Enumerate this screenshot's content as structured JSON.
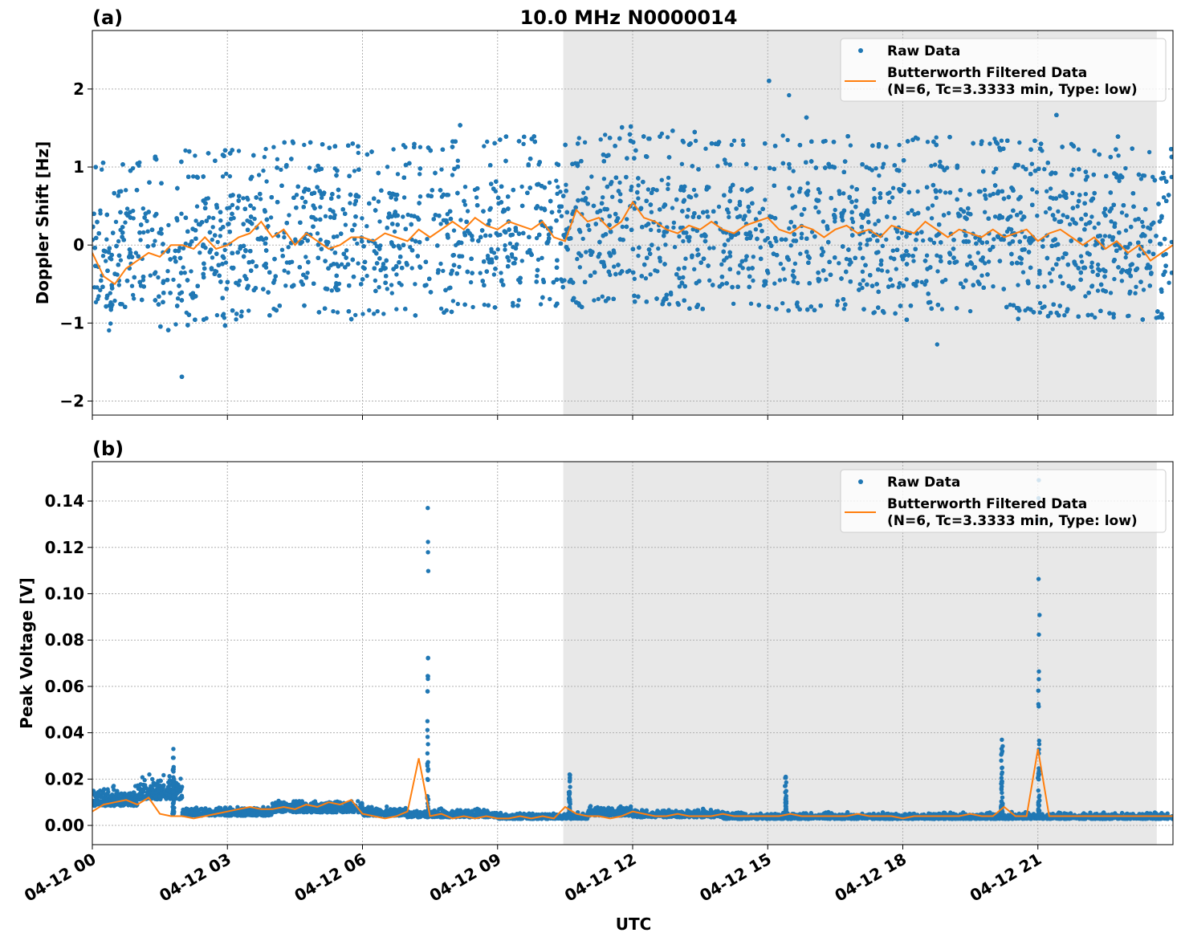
{
  "title": "10.0 MHz N0000014",
  "colors": {
    "raw": "#1f77b4",
    "filtered": "#ff7f0e",
    "shade": "#e8e8e8"
  },
  "chart_data": [
    {
      "type": "scatter+line",
      "panel_label": "(a)",
      "ylabel": "Doppler Shift [Hz]",
      "xlabel": "",
      "xlim_hours": [
        0,
        24
      ],
      "ylim": [
        -2.18,
        2.75
      ],
      "yticks": [
        -2,
        -1,
        0,
        1,
        2
      ],
      "ytick_labels": [
        "−2",
        "−1",
        "0",
        "1",
        "2"
      ],
      "grid": true,
      "shaded_region_hours": [
        10.46,
        23.64
      ],
      "legend": {
        "placement": "upper-right",
        "entries": [
          "Raw Data",
          "Butterworth Filtered Data",
          "(N=6, Tc=3.3333 min, Type: low)"
        ]
      },
      "raw_levels_hz": [
        -0.9,
        -0.6,
        -0.3,
        0,
        0.3,
        0.6,
        0.9,
        1.2
      ],
      "raw_hourly_center": [
        -0.3,
        -0.2,
        -0.05,
        0,
        0.15,
        0.1,
        0.05,
        0.1,
        0.25,
        0.25,
        0.25,
        0.35,
        0.35,
        0.2,
        0.2,
        0.2,
        0.2,
        0.15,
        0.2,
        0.15,
        0.15,
        0.1,
        0,
        0,
        0
      ],
      "filtered_step_hours": 0.25,
      "filtered": [
        -0.1,
        -0.4,
        -0.5,
        -0.3,
        -0.2,
        -0.1,
        -0.15,
        0.0,
        0.0,
        -0.05,
        0.1,
        -0.05,
        0.0,
        0.1,
        0.15,
        0.3,
        0.1,
        0.2,
        0.0,
        0.15,
        0.05,
        -0.05,
        0.0,
        0.1,
        0.1,
        0.05,
        0.15,
        0.1,
        0.05,
        0.2,
        0.1,
        0.2,
        0.3,
        0.2,
        0.35,
        0.25,
        0.2,
        0.3,
        0.25,
        0.2,
        0.3,
        0.1,
        0.05,
        0.45,
        0.3,
        0.35,
        0.2,
        0.3,
        0.55,
        0.35,
        0.3,
        0.2,
        0.15,
        0.25,
        0.2,
        0.3,
        0.2,
        0.15,
        0.25,
        0.3,
        0.35,
        0.2,
        0.15,
        0.25,
        0.2,
        0.1,
        0.2,
        0.25,
        0.15,
        0.2,
        0.1,
        0.25,
        0.2,
        0.15,
        0.3,
        0.2,
        0.1,
        0.2,
        0.15,
        0.1,
        0.2,
        0.1,
        0.15,
        0.2,
        0.05,
        0.15,
        0.2,
        0.1,
        0.0,
        0.1,
        -0.05,
        0.05,
        -0.1,
        0.0,
        -0.2,
        -0.1,
        0.0
      ]
    },
    {
      "type": "scatter+line",
      "panel_label": "(b)",
      "ylabel": "Peak Voltage [V]",
      "xlabel": "UTC",
      "xlim_hours": [
        0,
        24
      ],
      "xticks_hours": [
        0,
        3,
        6,
        9,
        12,
        15,
        18,
        21
      ],
      "xtick_labels": [
        "04-12 00",
        "04-12 03",
        "04-12 06",
        "04-12 09",
        "04-12 12",
        "04-12 15",
        "04-12 18",
        "04-12 21"
      ],
      "ylim": [
        -0.0083,
        0.157
      ],
      "yticks": [
        0,
        0.02,
        0.04,
        0.06,
        0.08,
        0.1,
        0.12,
        0.14
      ],
      "ytick_labels": [
        "0.00",
        "0.02",
        "0.04",
        "0.06",
        "0.08",
        "0.10",
        "0.12",
        "0.14"
      ],
      "grid": true,
      "shaded_region_hours": [
        10.46,
        23.64
      ],
      "legend": {
        "placement": "upper-right",
        "entries": [
          "Raw Data",
          "Butterworth Filtered Data",
          "(N=6, Tc=3.3333 min, Type: low)"
        ]
      },
      "raw_hourly_baseline": [
        0.012,
        0.016,
        0.006,
        0.006,
        0.008,
        0.008,
        0.006,
        0.005,
        0.005,
        0.004,
        0.004,
        0.006,
        0.005,
        0.005,
        0.004,
        0.004,
        0.004,
        0.004,
        0.004,
        0.004,
        0.004,
        0.004,
        0.004,
        0.004,
        0.004
      ],
      "raw_spikes": [
        [
          1.8,
          0.033
        ],
        [
          7.45,
          0.137
        ],
        [
          10.6,
          0.022
        ],
        [
          15.4,
          0.021
        ],
        [
          20.2,
          0.037
        ],
        [
          21.02,
          0.149
        ]
      ],
      "filtered_step_hours": 0.25,
      "filtered": [
        0.006,
        0.009,
        0.01,
        0.011,
        0.009,
        0.012,
        0.005,
        0.004,
        0.004,
        0.003,
        0.004,
        0.005,
        0.006,
        0.007,
        0.008,
        0.007,
        0.007,
        0.008,
        0.007,
        0.009,
        0.008,
        0.01,
        0.009,
        0.011,
        0.005,
        0.004,
        0.003,
        0.004,
        0.006,
        0.029,
        0.004,
        0.005,
        0.003,
        0.004,
        0.003,
        0.004,
        0.003,
        0.003,
        0.004,
        0.003,
        0.004,
        0.003,
        0.008,
        0.005,
        0.004,
        0.004,
        0.003,
        0.004,
        0.006,
        0.005,
        0.004,
        0.004,
        0.005,
        0.004,
        0.004,
        0.004,
        0.005,
        0.004,
        0.004,
        0.004,
        0.004,
        0.004,
        0.005,
        0.004,
        0.004,
        0.004,
        0.004,
        0.004,
        0.005,
        0.004,
        0.004,
        0.004,
        0.003,
        0.004,
        0.004,
        0.004,
        0.004,
        0.004,
        0.005,
        0.004,
        0.004,
        0.008,
        0.004,
        0.004,
        0.033,
        0.004,
        0.004,
        0.004,
        0.004,
        0.004,
        0.004,
        0.004,
        0.004,
        0.004,
        0.004,
        0.004,
        0.004
      ]
    }
  ]
}
